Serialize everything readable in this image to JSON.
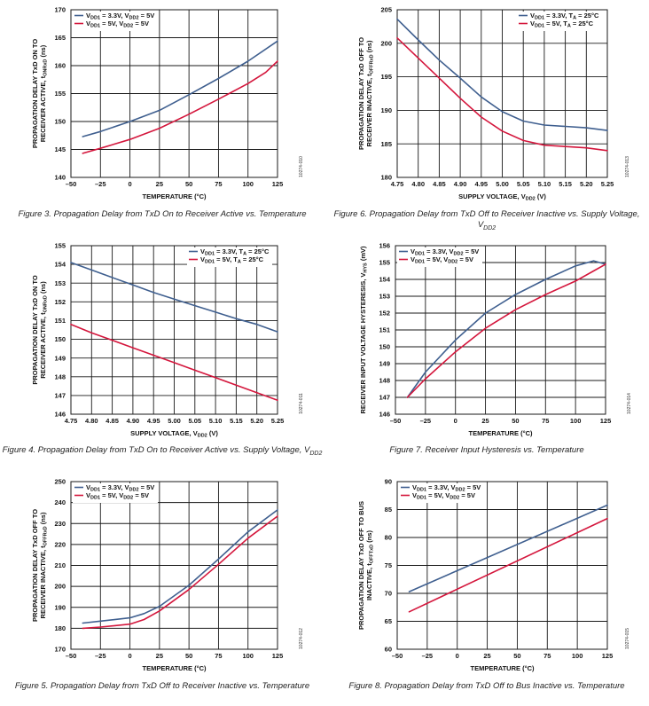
{
  "colors": {
    "blue": "#3f5f8f",
    "red": "#d4163c",
    "grid": "#1a1a1a"
  },
  "legend": {
    "temp_blue": [
      "V",
      "DD1",
      " = 3.3V, V",
      "DD2",
      " = 5V"
    ],
    "temp_red": [
      "V",
      "DD1",
      " = 5V, V",
      "DD2",
      " = 5V"
    ],
    "supply_blue": [
      "V",
      "DD1",
      " = 3.3V, T",
      "A",
      " = 25°C"
    ],
    "supply_red": [
      "V",
      "DD1",
      " = 5V, T",
      "A",
      " = 25°C"
    ]
  },
  "chart_data": [
    {
      "id": "fig3",
      "type": "line",
      "caption": "Figure 3. Propagation Delay from TxD On to Receiver Active vs. Temperature",
      "figid": "10274-010",
      "xlabel": [
        "TEMPERATURE (°C)"
      ],
      "ylabel": [
        [
          "PROPAGATION DELAY TxD ON TO"
        ],
        [
          "RECEIVER ACTIVE, t",
          "ONRxD",
          " (ns)"
        ]
      ],
      "legend_keys": [
        "temp_blue",
        "temp_red"
      ],
      "legend_pos": "top-left",
      "xlim": [
        -50,
        125
      ],
      "ylim": [
        140,
        170
      ],
      "xticks": [
        -50,
        -25,
        0,
        25,
        50,
        75,
        100,
        125
      ],
      "yticks": [
        140,
        145,
        150,
        155,
        160,
        165,
        170
      ],
      "xtick_labels": [
        "–50",
        "–25",
        "0",
        "25",
        "50",
        "75",
        "100",
        "125"
      ],
      "ytick_labels": [
        "140",
        "145",
        "150",
        "155",
        "160",
        "165",
        "170"
      ],
      "series": [
        {
          "color": "blue",
          "x": [
            -40,
            -25,
            0,
            25,
            50,
            75,
            100,
            125
          ],
          "y": [
            147.3,
            148.2,
            150,
            152,
            154.8,
            157.7,
            160.8,
            164.4
          ]
        },
        {
          "color": "red",
          "x": [
            -40,
            -25,
            0,
            25,
            50,
            75,
            100,
            115,
            125
          ],
          "y": [
            144.3,
            145.2,
            146.8,
            148.8,
            151.3,
            154,
            156.8,
            158.8,
            160.8
          ]
        }
      ]
    },
    {
      "id": "fig6",
      "type": "line",
      "caption": "Figure 6. Propagation Delay from TxD Off to Receiver Inactive vs. Supply Voltage, V",
      "caption_sub": "DD2",
      "figid": "10274-013",
      "xlabel": [
        "SUPPLY VOLTAGE, V",
        "DD2",
        " (V)"
      ],
      "ylabel": [
        [
          "PROPAGATION DELAY TxD OFF TO"
        ],
        [
          "RECEIVER INACTIVE, t",
          "OFFRxD",
          " (ns)"
        ]
      ],
      "legend_keys": [
        "supply_blue",
        "supply_red"
      ],
      "legend_pos": "top-right",
      "xlim": [
        4.75,
        5.25
      ],
      "ylim": [
        180,
        205
      ],
      "xticks": [
        4.75,
        4.8,
        4.85,
        4.9,
        4.95,
        5.0,
        5.05,
        5.1,
        5.15,
        5.2,
        5.25
      ],
      "yticks": [
        180,
        185,
        190,
        195,
        200,
        205
      ],
      "xtick_labels": [
        "4.75",
        "4.80",
        "4.85",
        "4.90",
        "4.95",
        "5.00",
        "5.05",
        "5.10",
        "5.15",
        "5.20",
        "5.25"
      ],
      "ytick_labels": [
        "180",
        "185",
        "190",
        "195",
        "200",
        "205"
      ],
      "series": [
        {
          "color": "blue",
          "x": [
            4.75,
            4.8,
            4.85,
            4.9,
            4.95,
            5.0,
            5.05,
            5.1,
            5.15,
            5.2,
            5.25
          ],
          "y": [
            203.6,
            200.5,
            197.5,
            194.8,
            192,
            189.8,
            188.4,
            187.8,
            187.6,
            187.4,
            187
          ]
        },
        {
          "color": "red",
          "x": [
            4.75,
            4.8,
            4.85,
            4.9,
            4.95,
            5.0,
            5.05,
            5.1,
            5.15,
            5.2,
            5.25
          ],
          "y": [
            200.8,
            197.8,
            194.8,
            191.8,
            189,
            186.9,
            185.5,
            184.8,
            184.6,
            184.4,
            184
          ]
        }
      ]
    },
    {
      "id": "fig4",
      "type": "line",
      "caption": "Figure 4. Propagation Delay from TxD On to Receiver Active vs. Supply Voltage, V",
      "caption_sub": "DD2",
      "figid": "10274-011",
      "xlabel": [
        "SUPPLY VOLTAGE, V",
        "DD2",
        " (V)"
      ],
      "ylabel": [
        [
          "PROPAGATION DELAY TxD ON TO"
        ],
        [
          "RECEIVER ACTIVE, t",
          "ONRxD",
          " (ns)"
        ]
      ],
      "legend_keys": [
        "supply_blue",
        "supply_red"
      ],
      "legend_pos": "top-right",
      "xlim": [
        4.75,
        5.25
      ],
      "ylim": [
        146,
        155
      ],
      "xticks": [
        4.75,
        4.8,
        4.85,
        4.9,
        4.95,
        5.0,
        5.05,
        5.1,
        5.15,
        5.2,
        5.25
      ],
      "yticks": [
        146,
        147,
        148,
        149,
        150,
        151,
        152,
        153,
        154,
        155
      ],
      "xtick_labels": [
        "4.75",
        "4.80",
        "4.85",
        "4.90",
        "4.95",
        "5.00",
        "5.05",
        "5.10",
        "5.15",
        "5.20",
        "5.25"
      ],
      "ytick_labels": [
        "146",
        "147",
        "148",
        "149",
        "150",
        "151",
        "152",
        "153",
        "154",
        "155"
      ],
      "series": [
        {
          "color": "blue",
          "x": [
            4.75,
            4.8,
            4.85,
            4.9,
            4.95,
            5.0,
            5.05,
            5.1,
            5.15,
            5.2,
            5.25
          ],
          "y": [
            154.1,
            153.7,
            153.3,
            152.9,
            152.5,
            152.15,
            151.8,
            151.45,
            151.1,
            150.8,
            150.4
          ]
        },
        {
          "color": "red",
          "x": [
            4.75,
            4.8,
            4.85,
            4.9,
            4.95,
            5.0,
            5.05,
            5.1,
            5.15,
            5.2,
            5.25
          ],
          "y": [
            150.8,
            150.35,
            149.95,
            149.55,
            149.15,
            148.75,
            148.35,
            147.95,
            147.55,
            147.15,
            146.75
          ]
        }
      ]
    },
    {
      "id": "fig7",
      "type": "line",
      "caption": "Figure 7. Receiver Input Hysteresis vs. Temperature",
      "figid": "10274-014",
      "xlabel": [
        "TEMPERATURE (°C)"
      ],
      "ylabel": [
        [
          "RECEIVER INPUT VOLTAGE HYSTERESIS, V",
          "HYS",
          " (mV)"
        ]
      ],
      "legend_keys": [
        "temp_blue",
        "temp_red"
      ],
      "legend_pos": "top-left",
      "xlim": [
        -50,
        125
      ],
      "ylim": [
        146,
        156
      ],
      "xticks": [
        -50,
        -25,
        0,
        25,
        50,
        75,
        100,
        125
      ],
      "yticks": [
        146,
        147,
        148,
        149,
        150,
        151,
        152,
        153,
        154,
        155,
        156
      ],
      "xtick_labels": [
        "–50",
        "–25",
        "0",
        "25",
        "50",
        "75",
        "100",
        "125"
      ],
      "ytick_labels": [
        "146",
        "147",
        "148",
        "149",
        "150",
        "151",
        "152",
        "153",
        "154",
        "155",
        "156"
      ],
      "series": [
        {
          "color": "blue",
          "x": [
            -40,
            -25,
            0,
            25,
            50,
            75,
            100,
            115,
            125
          ],
          "y": [
            147,
            148.5,
            150.4,
            152,
            153.1,
            154,
            154.8,
            155.1,
            154.9
          ]
        },
        {
          "color": "red",
          "x": [
            -40,
            -25,
            0,
            25,
            50,
            75,
            100,
            115,
            125
          ],
          "y": [
            147,
            148.1,
            149.7,
            151.1,
            152.2,
            153.1,
            153.9,
            154.5,
            154.9
          ]
        }
      ]
    },
    {
      "id": "fig5",
      "type": "line",
      "caption": "Figure 5. Propagation Delay from TxD Off to Receiver Inactive vs. Temperature",
      "figid": "10274-012",
      "xlabel": [
        "TEMPERATURE (°C)"
      ],
      "ylabel": [
        [
          "PROPAGATION DELAY TxD OFF TO"
        ],
        [
          "RECEIVER INACTIVE, t",
          "OFFRxD",
          " (ns)"
        ]
      ],
      "legend_keys": [
        "temp_blue",
        "temp_red"
      ],
      "legend_pos": "top-left",
      "xlim": [
        -50,
        125
      ],
      "ylim": [
        170,
        250
      ],
      "xticks": [
        -50,
        -25,
        0,
        25,
        50,
        75,
        100,
        125
      ],
      "yticks": [
        170,
        180,
        190,
        200,
        210,
        220,
        230,
        240,
        250
      ],
      "xtick_labels": [
        "–50",
        "–25",
        "0",
        "25",
        "50",
        "75",
        "100",
        "125"
      ],
      "ytick_labels": [
        "170",
        "180",
        "190",
        "200",
        "210",
        "220",
        "230",
        "240",
        "250"
      ],
      "series": [
        {
          "color": "blue",
          "x": [
            -40,
            -25,
            0,
            12,
            25,
            50,
            75,
            100,
            125
          ],
          "y": [
            182.5,
            183.4,
            185,
            187,
            190.5,
            200.5,
            213,
            226,
            236.5
          ]
        },
        {
          "color": "red",
          "x": [
            -40,
            -25,
            0,
            12,
            25,
            50,
            75,
            100,
            125
          ],
          "y": [
            180,
            180.6,
            182,
            184.2,
            188.3,
            198.5,
            210.5,
            223,
            233.5
          ]
        }
      ]
    },
    {
      "id": "fig8",
      "type": "line",
      "caption": "Figure 8. Propagation Delay from TxD Off to Bus Inactive vs. Temperature",
      "figid": "10274-015",
      "xlabel": [
        "TEMPERATURE (°C)"
      ],
      "ylabel": [
        [
          "PROPAGATION DELAY TxD OFF TO BUS"
        ],
        [
          "INACTIVE, t",
          "OFFTxD",
          " (ns)"
        ]
      ],
      "legend_keys": [
        "temp_blue",
        "temp_red"
      ],
      "legend_pos": "top-left",
      "xlim": [
        -50,
        125
      ],
      "ylim": [
        60,
        90
      ],
      "xticks": [
        -50,
        -25,
        0,
        25,
        50,
        75,
        100,
        125
      ],
      "yticks": [
        60,
        65,
        70,
        75,
        80,
        85,
        90
      ],
      "xtick_labels": [
        "–50",
        "–25",
        "0",
        "25",
        "50",
        "75",
        "100",
        "125"
      ],
      "ytick_labels": [
        "60",
        "65",
        "70",
        "75",
        "80",
        "85",
        "90"
      ],
      "series": [
        {
          "color": "blue",
          "x": [
            -40,
            125
          ],
          "y": [
            70.3,
            85.8
          ]
        },
        {
          "color": "red",
          "x": [
            -40,
            125
          ],
          "y": [
            66.7,
            83.4
          ]
        }
      ]
    }
  ]
}
